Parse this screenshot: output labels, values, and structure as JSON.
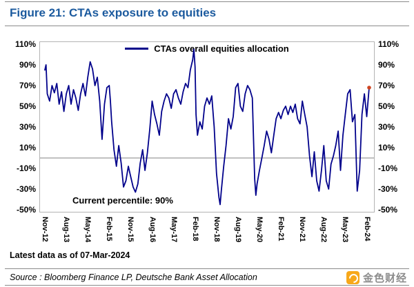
{
  "title": "Figure 21: CTAs exposure to equities",
  "footer": {
    "latest_note": "Latest data as of 07-Mar-2024",
    "source": "Source : Bloomberg Finance LP, Deutsche Bank Asset Allocation",
    "watermark": "金色财经"
  },
  "colors": {
    "title_blue": "#1b5a9e",
    "line_navy": "#00008b",
    "end_dot": "#cf4520",
    "rule_gray": "#8a8a8a",
    "zero_line": "#808080",
    "plot_border": "#b3b3b3",
    "watermark_orange": "#f7a81b"
  },
  "chart_data": {
    "type": "line",
    "title": "Figure 21: CTAs exposure to equities",
    "legend": "CTAs overall equities allocation",
    "annotation": "Current percentile: 90%",
    "ylim": [
      -50,
      110
    ],
    "y_tick_values": [
      110,
      90,
      70,
      50,
      30,
      10,
      -10,
      -30,
      -50
    ],
    "y_tick_labels": [
      "110%",
      "90%",
      "70%",
      "50%",
      "30%",
      "10%",
      "-10%",
      "-30%",
      "-50%"
    ],
    "x_tick_labels": [
      "Nov-12",
      "Aug-13",
      "May-14",
      "Feb-15",
      "Nov-15",
      "Aug-16",
      "May-17",
      "Feb-18",
      "Nov-18",
      "Aug-19",
      "May-20",
      "Feb-21",
      "Nov-21",
      "Aug-22",
      "May-23",
      "Feb-24"
    ],
    "x_tick_months": [
      0,
      9,
      18,
      27,
      36,
      45,
      54,
      63,
      72,
      81,
      90,
      99,
      108,
      117,
      126,
      135
    ],
    "x_unit": "months since Nov-2012",
    "x_max_month": 136,
    "grid": false,
    "legend_position": "top-center",
    "series": [
      {
        "name": "CTAs overall equities allocation",
        "color": "#00008b",
        "points": [
          [
            0,
            85
          ],
          [
            0.5,
            90
          ],
          [
            1,
            62
          ],
          [
            2,
            55
          ],
          [
            3,
            70
          ],
          [
            4,
            63
          ],
          [
            5,
            72
          ],
          [
            6,
            52
          ],
          [
            7,
            64
          ],
          [
            8,
            45
          ],
          [
            9,
            62
          ],
          [
            10,
            70
          ],
          [
            11,
            52
          ],
          [
            12,
            66
          ],
          [
            13,
            58
          ],
          [
            14,
            46
          ],
          [
            15,
            62
          ],
          [
            16,
            72
          ],
          [
            17,
            60
          ],
          [
            18,
            78
          ],
          [
            19,
            93
          ],
          [
            20,
            86
          ],
          [
            21,
            70
          ],
          [
            22,
            78
          ],
          [
            23,
            55
          ],
          [
            24,
            18
          ],
          [
            25,
            52
          ],
          [
            26,
            68
          ],
          [
            27,
            70
          ],
          [
            27.5,
            55
          ],
          [
            28,
            35
          ],
          [
            29,
            8
          ],
          [
            30,
            -8
          ],
          [
            31,
            12
          ],
          [
            32,
            -5
          ],
          [
            33,
            -28
          ],
          [
            34,
            -22
          ],
          [
            35,
            -8
          ],
          [
            36,
            -18
          ],
          [
            37,
            -28
          ],
          [
            38,
            -33
          ],
          [
            39,
            -25
          ],
          [
            40,
            -5
          ],
          [
            41,
            8
          ],
          [
            42,
            -12
          ],
          [
            43,
            5
          ],
          [
            44,
            28
          ],
          [
            45,
            55
          ],
          [
            46,
            42
          ],
          [
            47,
            33
          ],
          [
            48,
            22
          ],
          [
            49,
            45
          ],
          [
            50,
            55
          ],
          [
            51,
            62
          ],
          [
            52,
            58
          ],
          [
            53,
            48
          ],
          [
            54,
            62
          ],
          [
            55,
            66
          ],
          [
            56,
            58
          ],
          [
            57,
            52
          ],
          [
            58,
            64
          ],
          [
            59,
            72
          ],
          [
            60,
            68
          ],
          [
            61,
            85
          ],
          [
            62,
            95
          ],
          [
            62.5,
            105
          ],
          [
            63,
            88
          ],
          [
            63.4,
            42
          ],
          [
            64,
            22
          ],
          [
            65,
            35
          ],
          [
            66,
            28
          ],
          [
            67,
            50
          ],
          [
            68,
            58
          ],
          [
            69,
            52
          ],
          [
            70,
            60
          ],
          [
            71,
            30
          ],
          [
            72,
            -15
          ],
          [
            73,
            -38
          ],
          [
            73.5,
            -45
          ],
          [
            74,
            -32
          ],
          [
            75,
            -8
          ],
          [
            76,
            12
          ],
          [
            77,
            38
          ],
          [
            78,
            28
          ],
          [
            79,
            40
          ],
          [
            80,
            68
          ],
          [
            81,
            72
          ],
          [
            82,
            50
          ],
          [
            83,
            45
          ],
          [
            84,
            62
          ],
          [
            85,
            70
          ],
          [
            86,
            66
          ],
          [
            87,
            58
          ],
          [
            88,
            -20
          ],
          [
            88.5,
            -36
          ],
          [
            89,
            -25
          ],
          [
            90,
            -12
          ],
          [
            91,
            0
          ],
          [
            92,
            12
          ],
          [
            93,
            26
          ],
          [
            94,
            18
          ],
          [
            95,
            5
          ],
          [
            96,
            22
          ],
          [
            97,
            38
          ],
          [
            98,
            44
          ],
          [
            99,
            38
          ],
          [
            100,
            46
          ],
          [
            101,
            50
          ],
          [
            102,
            42
          ],
          [
            103,
            50
          ],
          [
            104,
            44
          ],
          [
            105,
            52
          ],
          [
            106,
            38
          ],
          [
            107,
            33
          ],
          [
            108,
            55
          ],
          [
            109,
            42
          ],
          [
            110,
            30
          ],
          [
            111,
            2
          ],
          [
            112,
            -18
          ],
          [
            113,
            6
          ],
          [
            114,
            -22
          ],
          [
            115,
            -32
          ],
          [
            116,
            -12
          ],
          [
            117,
            12
          ],
          [
            118,
            -22
          ],
          [
            119,
            -30
          ],
          [
            120,
            -6
          ],
          [
            121,
            2
          ],
          [
            122,
            12
          ],
          [
            123,
            26
          ],
          [
            124,
            -12
          ],
          [
            125,
            22
          ],
          [
            126,
            42
          ],
          [
            127,
            62
          ],
          [
            128,
            66
          ],
          [
            129,
            35
          ],
          [
            130,
            42
          ],
          [
            131,
            -32
          ],
          [
            132,
            -12
          ],
          [
            133,
            42
          ],
          [
            134,
            62
          ],
          [
            135,
            40
          ],
          [
            136,
            68
          ]
        ]
      }
    ],
    "end_marker": {
      "color": "#cf4520",
      "value": 68
    }
  }
}
